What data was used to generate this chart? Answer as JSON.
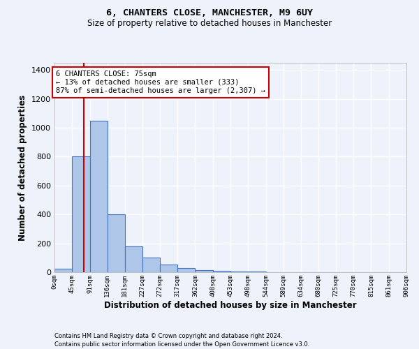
{
  "title1": "6, CHANTERS CLOSE, MANCHESTER, M9 6UY",
  "title2": "Size of property relative to detached houses in Manchester",
  "xlabel": "Distribution of detached houses by size in Manchester",
  "ylabel": "Number of detached properties",
  "bar_values": [
    25,
    800,
    1050,
    400,
    180,
    100,
    55,
    30,
    15,
    10,
    5,
    3,
    2,
    1,
    1,
    1,
    1,
    1,
    1,
    1
  ],
  "bin_edges": [
    0,
    45,
    91,
    136,
    181,
    227,
    272,
    317,
    362,
    408,
    453,
    498,
    544,
    589,
    634,
    680,
    725,
    770,
    815,
    861,
    906
  ],
  "bar_color": "#aec6e8",
  "bar_edge_color": "#4472c4",
  "ylim": [
    0,
    1450
  ],
  "yticks": [
    0,
    200,
    400,
    600,
    800,
    1000,
    1200,
    1400
  ],
  "property_size": 75,
  "vline_color": "#cc0000",
  "annotation_title": "6 CHANTERS CLOSE: 75sqm",
  "annotation_line1": "← 13% of detached houses are smaller (333)",
  "annotation_line2": "87% of semi-detached houses are larger (2,307) →",
  "annotation_box_color": "#ffffff",
  "annotation_border_color": "#cc0000",
  "background_color": "#eef2fa",
  "grid_color": "#ffffff",
  "footer1": "Contains HM Land Registry data © Crown copyright and database right 2024.",
  "footer2": "Contains public sector information licensed under the Open Government Licence v3.0."
}
